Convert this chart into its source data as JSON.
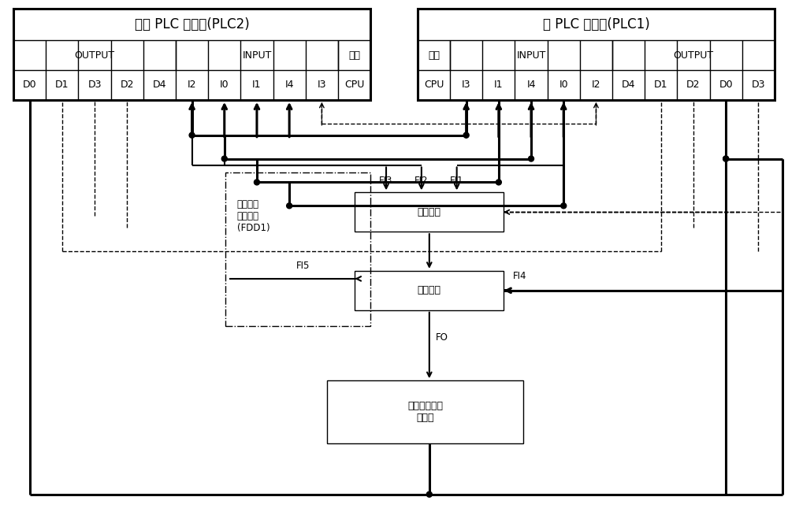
{
  "fig_width": 10.0,
  "fig_height": 6.59,
  "plc2_title": "备份 PLC 控制器(PLC2)",
  "plc1_title": "主 PLC 控制器(PLC1)",
  "plc2_output_label": "OUTPUT",
  "plc2_input_label": "INPUT",
  "plc2_power_label": "电源",
  "plc1_power_label": "电源",
  "plc1_input_label": "INPUT",
  "plc1_output_label": "OUTPUT",
  "plc2_modules": [
    "D0",
    "D1",
    "D3",
    "D2",
    "D4",
    "I2",
    "I0",
    "I1",
    "I4",
    "I3",
    "CPU"
  ],
  "plc1_modules": [
    "CPU",
    "I3",
    "I1",
    "I4",
    "I0",
    "I2",
    "D4",
    "D1",
    "D2",
    "D0",
    "D3"
  ],
  "decision_label": "决策逻辑",
  "switch_label": "切换开关",
  "actuator_label": "执行机构和被\n控对象",
  "fdd_label": "诊断决策\n逻辑模块\n(FDD1)",
  "font_size_title": 12,
  "font_size_label": 9,
  "font_size_small": 8.5,
  "lw_thick": 2.2,
  "lw_medium": 1.5,
  "lw_thin": 1.0
}
